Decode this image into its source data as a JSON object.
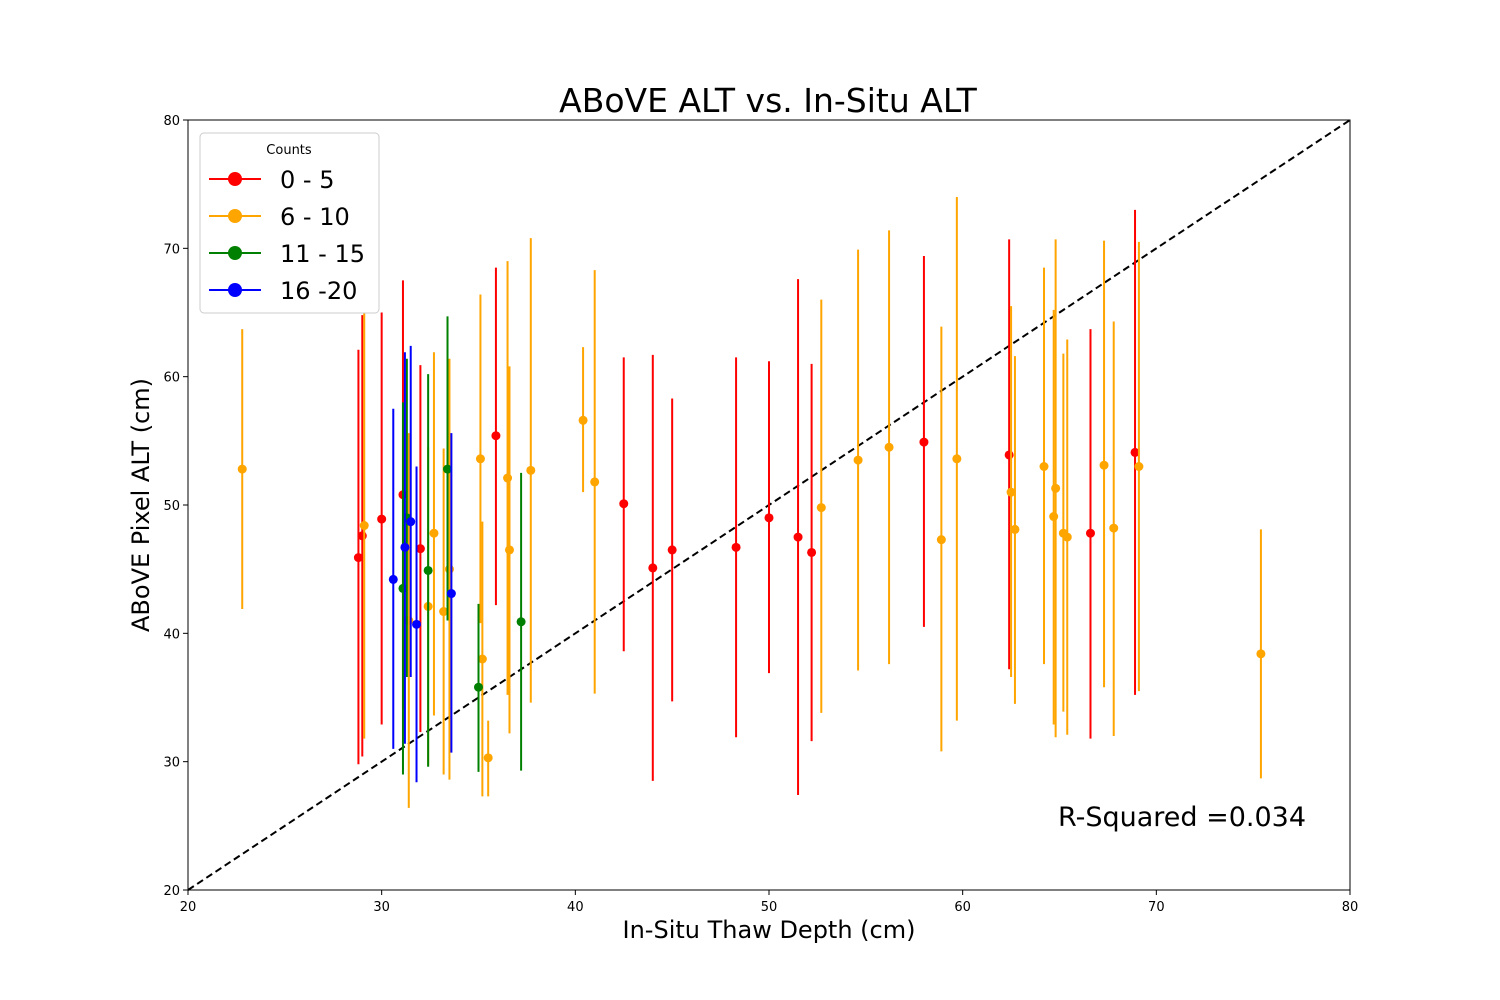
{
  "chart_data": {
    "type": "scatter",
    "title": "ABoVE ALT vs. In-Situ ALT",
    "xlabel": "In-Situ Thaw Depth (cm)",
    "ylabel": "ABoVE Pixel ALT (cm)",
    "xlim": [
      20,
      80
    ],
    "ylim": [
      20,
      80
    ],
    "xticks": [
      "20",
      "30",
      "40",
      "50",
      "60",
      "70",
      "80"
    ],
    "yticks": [
      "20",
      "30",
      "40",
      "50",
      "60",
      "70",
      "80"
    ],
    "grid": false,
    "legend": {
      "title": "Counts",
      "placement": "top-left",
      "entries": [
        {
          "label": "0 - 5",
          "color": "#ff0000"
        },
        {
          "label": "6 - 10",
          "color": "#ffa500"
        },
        {
          "label": "11 - 15",
          "color": "#008000"
        },
        {
          "label": "16 -20",
          "color": "#0000ff"
        }
      ]
    },
    "reference_line": {
      "x": [
        20,
        80
      ],
      "y": [
        20,
        80
      ],
      "style": "dashed",
      "color": "#000000"
    },
    "annotation": "R-Squared =0.034",
    "series": [
      {
        "name": "0 - 5",
        "color": "#ff0000",
        "points": [
          {
            "x": 28.8,
            "y": 45.9,
            "ylow": 29.8,
            "yhigh": 62.1
          },
          {
            "x": 29.0,
            "y": 47.6,
            "ylow": 30.4,
            "yhigh": 64.8
          },
          {
            "x": 30.0,
            "y": 48.9,
            "ylow": 32.9,
            "yhigh": 65.0
          },
          {
            "x": 31.1,
            "y": 50.8,
            "ylow": 34.1,
            "yhigh": 67.5
          },
          {
            "x": 32.0,
            "y": 46.6,
            "ylow": 32.3,
            "yhigh": 60.9
          },
          {
            "x": 35.9,
            "y": 55.4,
            "ylow": 42.2,
            "yhigh": 68.5
          },
          {
            "x": 42.5,
            "y": 50.1,
            "ylow": 38.6,
            "yhigh": 61.5
          },
          {
            "x": 44.0,
            "y": 45.1,
            "ylow": 28.5,
            "yhigh": 61.7
          },
          {
            "x": 45.0,
            "y": 46.5,
            "ylow": 34.7,
            "yhigh": 58.3
          },
          {
            "x": 48.3,
            "y": 46.7,
            "ylow": 31.9,
            "yhigh": 61.5
          },
          {
            "x": 50.0,
            "y": 49.0,
            "ylow": 36.9,
            "yhigh": 61.2
          },
          {
            "x": 51.5,
            "y": 47.5,
            "ylow": 27.4,
            "yhigh": 67.6
          },
          {
            "x": 52.2,
            "y": 46.3,
            "ylow": 31.6,
            "yhigh": 61.0
          },
          {
            "x": 58.0,
            "y": 54.9,
            "ylow": 40.5,
            "yhigh": 69.4
          },
          {
            "x": 62.4,
            "y": 53.9,
            "ylow": 37.2,
            "yhigh": 70.7
          },
          {
            "x": 66.6,
            "y": 47.8,
            "ylow": 31.8,
            "yhigh": 63.7
          },
          {
            "x": 68.9,
            "y": 54.1,
            "ylow": 35.2,
            "yhigh": 73.0
          }
        ]
      },
      {
        "name": "6 - 10",
        "color": "#ffa500",
        "points": [
          {
            "x": 22.8,
            "y": 52.8,
            "ylow": 41.9,
            "yhigh": 63.7
          },
          {
            "x": 29.1,
            "y": 48.4,
            "ylow": 31.8,
            "yhigh": 65.0
          },
          {
            "x": 31.4,
            "y": 41.0,
            "ylow": 26.4,
            "yhigh": 55.6
          },
          {
            "x": 32.4,
            "y": 42.1,
            "ylow": 29.7,
            "yhigh": 54.5
          },
          {
            "x": 32.7,
            "y": 47.8,
            "ylow": 33.6,
            "yhigh": 61.9
          },
          {
            "x": 33.2,
            "y": 41.7,
            "ylow": 29.0,
            "yhigh": 54.4
          },
          {
            "x": 33.5,
            "y": 45.0,
            "ylow": 28.6,
            "yhigh": 61.4
          },
          {
            "x": 35.1,
            "y": 53.6,
            "ylow": 40.8,
            "yhigh": 66.4
          },
          {
            "x": 35.2,
            "y": 38.0,
            "ylow": 27.3,
            "yhigh": 48.7
          },
          {
            "x": 35.5,
            "y": 30.3,
            "ylow": 27.3,
            "yhigh": 33.2
          },
          {
            "x": 36.5,
            "y": 52.1,
            "ylow": 35.2,
            "yhigh": 69.0
          },
          {
            "x": 36.6,
            "y": 46.5,
            "ylow": 32.2,
            "yhigh": 60.8
          },
          {
            "x": 37.7,
            "y": 52.7,
            "ylow": 34.6,
            "yhigh": 70.8
          },
          {
            "x": 40.4,
            "y": 56.6,
            "ylow": 51.0,
            "yhigh": 62.3
          },
          {
            "x": 41.0,
            "y": 51.8,
            "ylow": 35.3,
            "yhigh": 68.3
          },
          {
            "x": 52.7,
            "y": 49.8,
            "ylow": 33.8,
            "yhigh": 66.0
          },
          {
            "x": 54.6,
            "y": 53.5,
            "ylow": 37.1,
            "yhigh": 69.9
          },
          {
            "x": 56.2,
            "y": 54.5,
            "ylow": 37.6,
            "yhigh": 71.4
          },
          {
            "x": 58.9,
            "y": 47.3,
            "ylow": 30.8,
            "yhigh": 63.9
          },
          {
            "x": 59.7,
            "y": 53.6,
            "ylow": 33.2,
            "yhigh": 74.0
          },
          {
            "x": 62.5,
            "y": 51.0,
            "ylow": 36.6,
            "yhigh": 65.5
          },
          {
            "x": 62.7,
            "y": 48.1,
            "ylow": 34.5,
            "yhigh": 61.6
          },
          {
            "x": 64.2,
            "y": 53.0,
            "ylow": 37.6,
            "yhigh": 68.5
          },
          {
            "x": 64.7,
            "y": 49.1,
            "ylow": 32.9,
            "yhigh": 65.2
          },
          {
            "x": 64.8,
            "y": 51.3,
            "ylow": 31.9,
            "yhigh": 70.7
          },
          {
            "x": 65.2,
            "y": 47.8,
            "ylow": 33.9,
            "yhigh": 61.8
          },
          {
            "x": 65.4,
            "y": 47.5,
            "ylow": 32.1,
            "yhigh": 62.9
          },
          {
            "x": 67.3,
            "y": 53.1,
            "ylow": 35.8,
            "yhigh": 70.6
          },
          {
            "x": 67.8,
            "y": 48.2,
            "ylow": 32.0,
            "yhigh": 64.3
          },
          {
            "x": 69.1,
            "y": 53.0,
            "ylow": 35.5,
            "yhigh": 70.5
          },
          {
            "x": 75.4,
            "y": 38.4,
            "ylow": 28.7,
            "yhigh": 48.1
          }
        ]
      },
      {
        "name": "11 - 15",
        "color": "#008000",
        "points": [
          {
            "x": 31.1,
            "y": 43.5,
            "ylow": 29.0,
            "yhigh": 58.0
          },
          {
            "x": 31.3,
            "y": 49.0,
            "ylow": 36.6,
            "yhigh": 61.4
          },
          {
            "x": 32.4,
            "y": 44.9,
            "ylow": 29.6,
            "yhigh": 60.2
          },
          {
            "x": 33.4,
            "y": 52.8,
            "ylow": 41.0,
            "yhigh": 64.7
          },
          {
            "x": 35.0,
            "y": 35.8,
            "ylow": 29.2,
            "yhigh": 42.3
          },
          {
            "x": 37.2,
            "y": 40.9,
            "ylow": 29.3,
            "yhigh": 52.5
          }
        ]
      },
      {
        "name": "16 -20",
        "color": "#0000ff",
        "points": [
          {
            "x": 30.6,
            "y": 44.2,
            "ylow": 31.0,
            "yhigh": 57.5
          },
          {
            "x": 31.2,
            "y": 46.7,
            "ylow": 31.4,
            "yhigh": 61.9
          },
          {
            "x": 31.5,
            "y": 48.7,
            "ylow": 36.6,
            "yhigh": 62.4
          },
          {
            "x": 31.8,
            "y": 40.7,
            "ylow": 28.4,
            "yhigh": 53.0
          },
          {
            "x": 33.6,
            "y": 43.1,
            "ylow": 30.7,
            "yhigh": 55.6
          }
        ]
      }
    ]
  }
}
